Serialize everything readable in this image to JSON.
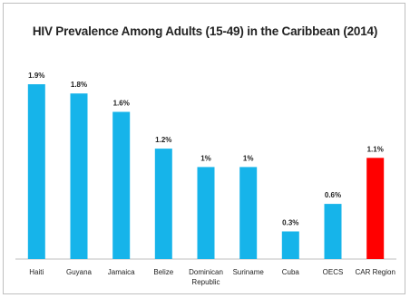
{
  "chart_data": {
    "type": "bar",
    "title": "HIV Prevalence Among Adults (15-49) in the Caribbean (2014)",
    "categories": [
      "Haiti",
      "Guyana",
      "Jamaica",
      "Belize",
      "Dominican Republic",
      "Suriname",
      "Cuba",
      "OECS",
      "CAR Region"
    ],
    "values": [
      1.9,
      1.8,
      1.6,
      1.2,
      1.0,
      1.0,
      0.3,
      0.6,
      1.1
    ],
    "data_labels": [
      "1.9%",
      "1.8%",
      "1.6%",
      "1.2%",
      "1%",
      "1%",
      "0.3%",
      "0.6%",
      "1.1%"
    ],
    "ylim": [
      0,
      2.0
    ],
    "xlabel": "",
    "ylabel": "",
    "grid": false,
    "legend": "none",
    "colors": {
      "default_bar": "#16b4ea",
      "highlight_bar": "#ff0000",
      "axis": "#bfbfbf",
      "text": "#222222"
    },
    "highlight_index": 8
  }
}
